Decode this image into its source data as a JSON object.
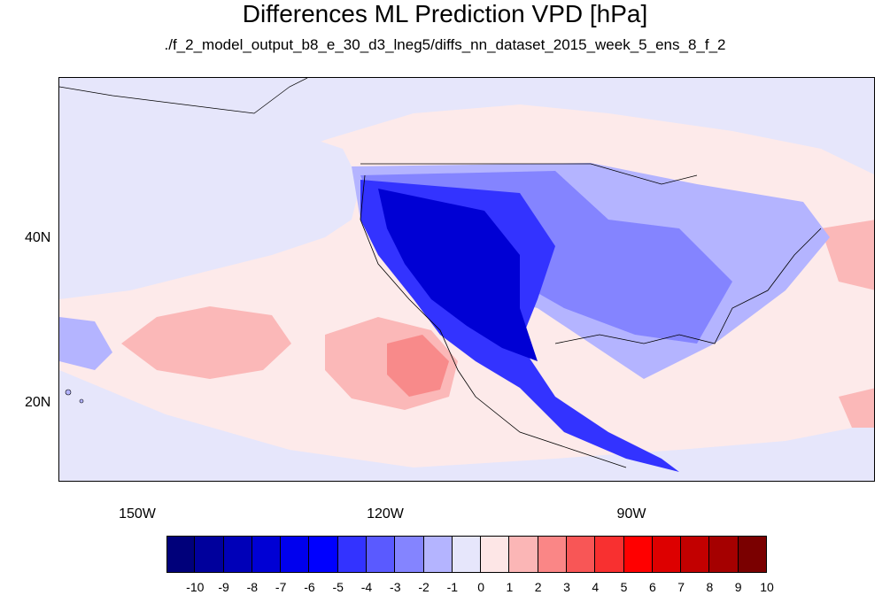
{
  "title": "Differences ML Prediction VPD [hPa]",
  "subtitle": "./f_2_model_output_b8_e_30_d3_lneg5/diffs_nn_dataset_2015_week_5_ens_8_f_2",
  "y_axis_labels": [
    "40N",
    "20N"
  ],
  "x_axis_labels": [
    "150W",
    "120W",
    "90W"
  ],
  "colorbar": {
    "labels": [
      "-10",
      "-9",
      "-8",
      "-7",
      "-6",
      "-5",
      "-4",
      "-3",
      "-2",
      "-1",
      "0",
      "1",
      "2",
      "3",
      "4",
      "5",
      "6",
      "7",
      "8",
      "9",
      "10"
    ],
    "colors": [
      "#00007a",
      "#00009c",
      "#0000b8",
      "#0000d4",
      "#0000ee",
      "#0000ff",
      "#3333ff",
      "#5a5aff",
      "#8484ff",
      "#b4b4ff",
      "#e6e6fb",
      "#fde6e6",
      "#fbb6b6",
      "#fa8686",
      "#f85656",
      "#f83030",
      "#ff0000",
      "#dd0000",
      "#c20000",
      "#a50000",
      "#7a0000"
    ]
  },
  "map_colors": {
    "ocean_pos_light": "#fdeaea",
    "ocean_pos_mid": "#fbb8b8",
    "ocean_pos_strong": "#f88a8a",
    "neg_very_light": "#e6e6fb",
    "neg_light": "#b4b4ff",
    "neg_mid": "#8484ff",
    "neg_strong": "#3333ff",
    "neg_deep": "#0000d4"
  }
}
